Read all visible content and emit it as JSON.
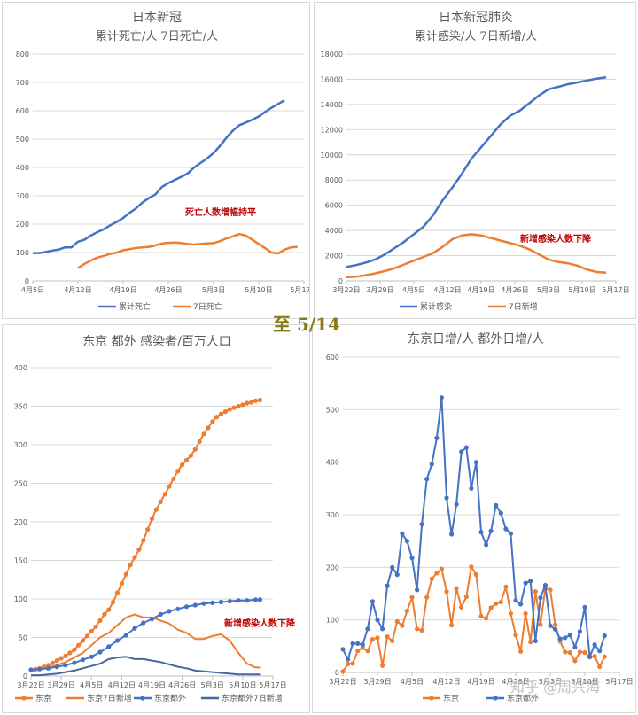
{
  "center_label": "至 5/14",
  "watermark": "知乎 @周兴海",
  "chart_data": [
    {
      "type": "line",
      "title": "日本新冠",
      "subtitle": "累计死亡/人  7日死亡/人",
      "annotation": "死亡人数增幅持平",
      "ylim": [
        0,
        800
      ],
      "yticks": [
        0,
        100,
        200,
        300,
        400,
        500,
        600,
        700,
        800
      ],
      "xticks": [
        "4月5日",
        "4月12日",
        "4月19日",
        "4月26日",
        "5月3日",
        "5月10日",
        "5月17日"
      ],
      "xrange": [
        0,
        42
      ],
      "grid": true,
      "legend_position": "bottom",
      "series": [
        {
          "name": "累计死亡",
          "color": "#4472c4",
          "x": [
            0,
            1,
            2,
            3,
            4,
            5,
            6,
            7,
            8,
            9,
            10,
            11,
            12,
            13,
            14,
            15,
            16,
            17,
            18,
            19,
            20,
            21,
            22,
            23,
            24,
            25,
            26,
            27,
            28,
            29,
            30,
            31,
            32,
            33,
            34,
            35,
            36,
            37,
            38,
            39
          ],
          "y": [
            98,
            98,
            102,
            107,
            110,
            118,
            118,
            138,
            145,
            160,
            172,
            182,
            196,
            208,
            222,
            240,
            256,
            277,
            292,
            305,
            331,
            345,
            356,
            367,
            379,
            400,
            416,
            432,
            451,
            476,
            505,
            530,
            549,
            558,
            568,
            580,
            596,
            611,
            624,
            637
          ]
        },
        {
          "name": "7日死亡",
          "color": "#ed7d31",
          "x": [
            7,
            8,
            9,
            10,
            11,
            12,
            13,
            14,
            15,
            16,
            17,
            18,
            19,
            20,
            21,
            22,
            23,
            24,
            25,
            26,
            27,
            28,
            29,
            30,
            31,
            32,
            33,
            34,
            35,
            36,
            37,
            38,
            39,
            40,
            41
          ],
          "y": [
            45,
            60,
            72,
            82,
            88,
            95,
            100,
            108,
            112,
            116,
            118,
            120,
            125,
            132,
            134,
            135,
            133,
            130,
            128,
            130,
            132,
            133,
            140,
            150,
            157,
            165,
            160,
            145,
            130,
            115,
            100,
            97,
            110,
            118,
            120
          ]
        }
      ]
    },
    {
      "type": "line",
      "title": "日本新冠肺炎",
      "subtitle": "累计感染/人  7日新增/人",
      "annotation": "新增感染人数下降",
      "ylim": [
        0,
        18000
      ],
      "yticks": [
        0,
        2000,
        4000,
        6000,
        8000,
        10000,
        12000,
        14000,
        16000,
        18000
      ],
      "xticks": [
        "3月22日",
        "3月29日",
        "4月5日",
        "4月12日",
        "4月19日",
        "4月26日",
        "5月3日",
        "5月10日",
        "5月17日"
      ],
      "xrange": [
        0,
        56
      ],
      "grid": true,
      "legend_position": "bottom",
      "series": [
        {
          "name": "累计感染",
          "color": "#4472c4",
          "x": [
            0,
            2,
            4,
            6,
            8,
            10,
            12,
            14,
            16,
            18,
            20,
            22,
            24,
            26,
            28,
            30,
            32,
            34,
            36,
            38,
            40,
            42,
            44,
            46,
            48,
            50,
            52,
            54
          ],
          "y": [
            1100,
            1250,
            1450,
            1700,
            2100,
            2600,
            3100,
            3700,
            4300,
            5200,
            6400,
            7400,
            8500,
            9700,
            10600,
            11500,
            12400,
            13100,
            13500,
            14100,
            14700,
            15200,
            15400,
            15600,
            15750,
            15900,
            16050,
            16150
          ]
        },
        {
          "name": "7日新增",
          "color": "#ed7d31",
          "x": [
            0,
            2,
            4,
            6,
            8,
            10,
            12,
            14,
            16,
            18,
            20,
            22,
            24,
            26,
            28,
            30,
            32,
            34,
            36,
            38,
            40,
            42,
            44,
            46,
            48,
            50,
            52,
            54
          ],
          "y": [
            300,
            330,
            450,
            600,
            780,
            1000,
            1300,
            1600,
            1900,
            2200,
            2700,
            3300,
            3600,
            3700,
            3600,
            3400,
            3200,
            3000,
            2800,
            2500,
            2100,
            1700,
            1500,
            1400,
            1200,
            900,
            700,
            650
          ]
        }
      ]
    },
    {
      "type": "line",
      "title": "东京 都外 感染者/百万人口",
      "ylim": [
        0,
        400
      ],
      "yticks": [
        0,
        50,
        100,
        150,
        200,
        250,
        300,
        350,
        400
      ],
      "xticks": [
        "3月22日",
        "3月29日",
        "4月5日",
        "4月12日",
        "4月19日",
        "4月26日",
        "5月3日",
        "5月10日",
        "5月17日"
      ],
      "xrange": [
        0,
        56
      ],
      "grid": true,
      "legend_position": "bottom",
      "annotation": "新增感染人数下降",
      "series": [
        {
          "name": "东京",
          "color": "#ed7d31",
          "markers": true,
          "x": [
            0,
            1,
            2,
            3,
            4,
            5,
            6,
            7,
            8,
            9,
            10,
            11,
            12,
            13,
            14,
            15,
            16,
            17,
            18,
            19,
            20,
            21,
            22,
            23,
            24,
            25,
            26,
            27,
            28,
            29,
            30,
            31,
            32,
            33,
            34,
            35,
            36,
            37,
            38,
            39,
            40,
            41,
            42,
            43,
            44,
            45,
            46,
            47,
            48,
            49,
            50,
            51,
            52,
            53
          ],
          "y": [
            8,
            9,
            10,
            12,
            14,
            17,
            20,
            23,
            26,
            30,
            34,
            40,
            46,
            52,
            58,
            64,
            72,
            80,
            86,
            96,
            108,
            120,
            132,
            144,
            154,
            164,
            176,
            190,
            204,
            216,
            226,
            236,
            246,
            256,
            266,
            274,
            280,
            286,
            294,
            304,
            314,
            322,
            330,
            336,
            340,
            343,
            346,
            348,
            350,
            352,
            354,
            355,
            357,
            358
          ]
        },
        {
          "name": "东京7日新增",
          "color": "#ed7d31",
          "markers": false,
          "x": [
            0,
            2,
            4,
            6,
            8,
            10,
            12,
            14,
            16,
            18,
            20,
            22,
            24,
            26,
            28,
            30,
            32,
            34,
            36,
            38,
            40,
            42,
            44,
            46,
            48,
            50,
            52,
            53
          ],
          "y": [
            6,
            8,
            11,
            14,
            18,
            24,
            30,
            40,
            50,
            56,
            66,
            76,
            80,
            76,
            76,
            72,
            68,
            60,
            56,
            48,
            48,
            52,
            54,
            46,
            30,
            16,
            11,
            11
          ]
        },
        {
          "name": "东京都外",
          "color": "#4472c4",
          "markers": true,
          "x": [
            0,
            2,
            4,
            6,
            8,
            10,
            12,
            14,
            16,
            18,
            20,
            22,
            24,
            26,
            28,
            30,
            32,
            34,
            36,
            38,
            40,
            42,
            44,
            46,
            48,
            50,
            52,
            53
          ],
          "y": [
            8,
            9,
            10,
            12,
            14,
            17,
            21,
            25,
            31,
            38,
            46,
            53,
            62,
            69,
            74,
            80,
            84,
            87,
            90,
            92,
            94,
            95,
            96,
            97,
            98,
            98,
            99,
            99
          ]
        },
        {
          "name": "东京都外7日新增",
          "color": "#44699e",
          "markers": false,
          "x": [
            0,
            2,
            4,
            6,
            8,
            10,
            12,
            14,
            16,
            18,
            20,
            22,
            24,
            26,
            28,
            30,
            32,
            34,
            36,
            38,
            40,
            42,
            44,
            46,
            48,
            50,
            52,
            53
          ],
          "y": [
            1,
            1,
            2,
            3,
            5,
            7,
            10,
            13,
            16,
            22,
            24,
            25,
            22,
            22,
            20,
            18,
            15,
            12,
            10,
            7,
            6,
            5,
            4,
            3,
            2,
            2,
            2,
            2
          ]
        }
      ]
    },
    {
      "type": "line",
      "title": "东京日增/人 都外日增/人",
      "ylim": [
        0,
        600
      ],
      "yticks": [
        0,
        100,
        200,
        300,
        400,
        500,
        600
      ],
      "xticks": [
        "3月22日",
        "3月29日",
        "4月5日",
        "4月12日",
        "4月19日",
        "4月26日",
        "5月3日",
        "5月10日",
        "5月17日"
      ],
      "xrange": [
        0,
        56
      ],
      "grid": true,
      "legend_position": "bottom",
      "series": [
        {
          "name": "东京",
          "color": "#ed7d31",
          "markers": true,
          "y": [
            2,
            16,
            17,
            41,
            47,
            41,
            63,
            66,
            13,
            68,
            60,
            97,
            89,
            117,
            143,
            83,
            80,
            143,
            178,
            189,
            197,
            154,
            90,
            160,
            124,
            144,
            201,
            186,
            107,
            103,
            123,
            131,
            134,
            163,
            112,
            71,
            40,
            112,
            58,
            154,
            91,
            160,
            157,
            91,
            59,
            39,
            38,
            22,
            39,
            38,
            29,
            31,
            11,
            30
          ]
        },
        {
          "name": "东京都外",
          "color": "#4472c4",
          "markers": true,
          "y": [
            44,
            25,
            55,
            55,
            53,
            83,
            135,
            100,
            83,
            165,
            200,
            186,
            264,
            250,
            218,
            157,
            282,
            368,
            396,
            446,
            523,
            332,
            263,
            320,
            420,
            428,
            350,
            400,
            267,
            243,
            269,
            318,
            303,
            273,
            264,
            137,
            130,
            170,
            174,
            60,
            142,
            166,
            89,
            82,
            64,
            66,
            71,
            48,
            78,
            124,
            30,
            53,
            41,
            70
          ]
        }
      ]
    }
  ]
}
